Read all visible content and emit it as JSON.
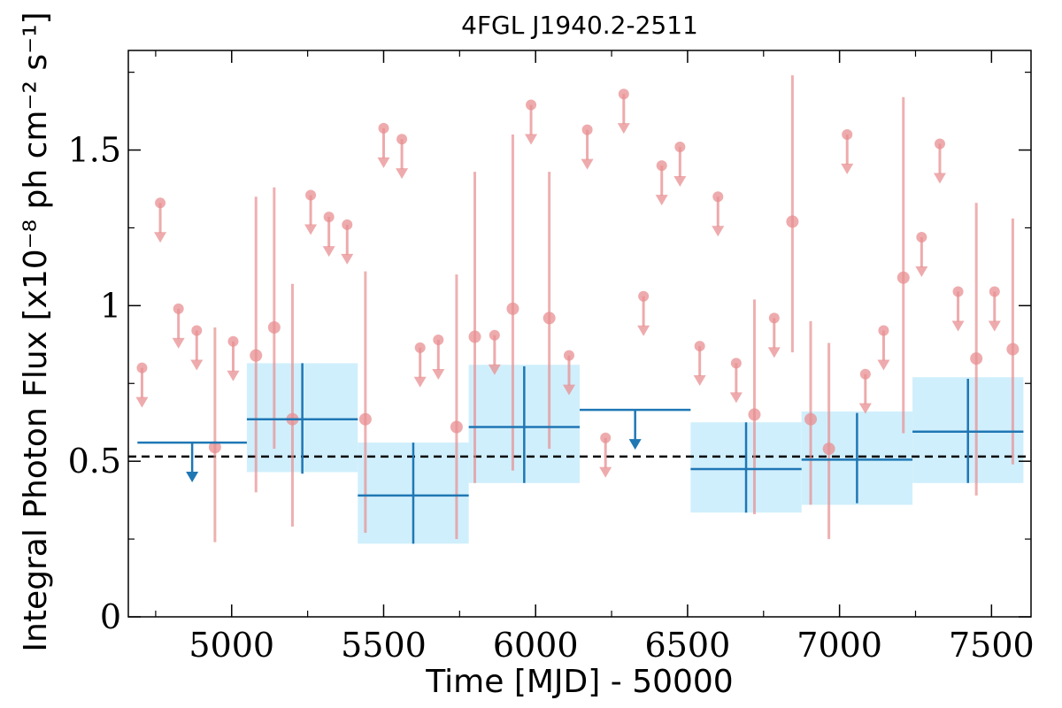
{
  "chart_data": {
    "type": "scatter",
    "title": "4FGL J1940.2-2511",
    "xlabel": "Time [MJD] - 50000",
    "ylabel": "Integral Photon Flux [x10⁻⁸ ph cm⁻² s⁻¹]",
    "xlim": [
      4660,
      7630
    ],
    "ylim": [
      0,
      1.82
    ],
    "x_ticks": [
      5000,
      5500,
      6000,
      6500,
      7000,
      7500
    ],
    "x_tick_labels": [
      "5000",
      "5500",
      "6000",
      "6500",
      "7000",
      "7500"
    ],
    "y_ticks": [
      0,
      0.5,
      1,
      1.5
    ],
    "y_tick_labels": [
      "0",
      "0.5",
      "1",
      "1.5"
    ],
    "reference_line": {
      "y": 0.515,
      "style": "dashed",
      "color": "#000000"
    },
    "colors": {
      "short_bins": "#e88f91",
      "long_bins": "#1f77b4",
      "band": "#cdeefc"
    },
    "series": [
      {
        "bin": "short",
        "points": [
          {
            "x": 4705,
            "y": 0.8,
            "ul": true
          },
          {
            "x": 4765,
            "y": 1.33,
            "ul": true
          },
          {
            "x": 4825,
            "y": 0.99,
            "ul": true
          },
          {
            "x": 4885,
            "y": 0.92,
            "ul": true
          },
          {
            "x": 4945,
            "y": 0.545,
            "lo": 0.24,
            "hi": 0.93
          },
          {
            "x": 5005,
            "y": 0.885,
            "ul": true
          },
          {
            "x": 5080,
            "y": 0.84,
            "lo": 0.4,
            "hi": 1.35
          },
          {
            "x": 5140,
            "y": 0.93,
            "lo": 0.54,
            "hi": 1.38
          },
          {
            "x": 5200,
            "y": 0.635,
            "lo": 0.29,
            "hi": 1.07
          },
          {
            "x": 5260,
            "y": 1.355,
            "ul": true
          },
          {
            "x": 5320,
            "y": 1.285,
            "ul": true
          },
          {
            "x": 5380,
            "y": 1.26,
            "ul": true
          },
          {
            "x": 5440,
            "y": 0.635,
            "lo": 0.27,
            "hi": 1.11
          },
          {
            "x": 5500,
            "y": 1.57,
            "ul": true
          },
          {
            "x": 5560,
            "y": 1.535,
            "ul": true
          },
          {
            "x": 5620,
            "y": 0.865,
            "ul": true
          },
          {
            "x": 5680,
            "y": 0.89,
            "ul": true
          },
          {
            "x": 5740,
            "y": 0.61,
            "lo": 0.25,
            "hi": 1.1
          },
          {
            "x": 5800,
            "y": 0.9,
            "lo": 0.43,
            "hi": 1.43
          },
          {
            "x": 5865,
            "y": 0.905,
            "ul": true
          },
          {
            "x": 5925,
            "y": 0.99,
            "lo": 0.47,
            "hi": 1.55
          },
          {
            "x": 5985,
            "y": 1.645,
            "ul": true
          },
          {
            "x": 6045,
            "y": 0.96,
            "lo": 0.54,
            "hi": 1.43
          },
          {
            "x": 6110,
            "y": 0.84,
            "ul": true
          },
          {
            "x": 6170,
            "y": 1.565,
            "ul": true
          },
          {
            "x": 6230,
            "y": 0.575,
            "ul": true
          },
          {
            "x": 6290,
            "y": 1.68,
            "ul": true
          },
          {
            "x": 6355,
            "y": 1.03,
            "ul": true
          },
          {
            "x": 6415,
            "y": 1.45,
            "ul": true
          },
          {
            "x": 6475,
            "y": 1.51,
            "ul": true
          },
          {
            "x": 6540,
            "y": 0.87,
            "ul": true
          },
          {
            "x": 6600,
            "y": 1.35,
            "ul": true
          },
          {
            "x": 6660,
            "y": 0.815,
            "ul": true
          },
          {
            "x": 6720,
            "y": 0.65,
            "lo": 0.33,
            "hi": 1.02
          },
          {
            "x": 6785,
            "y": 0.96,
            "ul": true
          },
          {
            "x": 6845,
            "y": 1.27,
            "lo": 0.85,
            "hi": 1.74
          },
          {
            "x": 6905,
            "y": 0.635,
            "lo": 0.36,
            "hi": 0.95
          },
          {
            "x": 6965,
            "y": 0.54,
            "lo": 0.25,
            "hi": 0.88
          },
          {
            "x": 7025,
            "y": 1.55,
            "ul": true
          },
          {
            "x": 7085,
            "y": 0.78,
            "ul": true
          },
          {
            "x": 7145,
            "y": 0.92,
            "ul": true
          },
          {
            "x": 7210,
            "y": 1.09,
            "lo": 0.59,
            "hi": 1.67
          },
          {
            "x": 7270,
            "y": 1.22,
            "ul": true
          },
          {
            "x": 7330,
            "y": 1.52,
            "ul": true
          },
          {
            "x": 7390,
            "y": 1.045,
            "ul": true
          },
          {
            "x": 7450,
            "y": 0.83,
            "lo": 0.39,
            "hi": 1.33
          },
          {
            "x": 7510,
            "y": 1.045,
            "ul": true
          },
          {
            "x": 7570,
            "y": 0.86,
            "lo": 0.49,
            "hi": 1.28
          }
        ]
      },
      {
        "bin": "long",
        "points": [
          {
            "x0": 4690,
            "x1": 5050,
            "y": 0.56,
            "ul": true
          },
          {
            "x0": 5050,
            "x1": 5415,
            "y": 0.635,
            "lo": 0.46,
            "hi": 0.815,
            "blo": 0.465,
            "bhi": 0.815
          },
          {
            "x0": 5415,
            "x1": 5780,
            "y": 0.39,
            "lo": 0.235,
            "hi": 0.56,
            "blo": 0.235,
            "bhi": 0.56
          },
          {
            "x0": 5780,
            "x1": 6145,
            "y": 0.61,
            "lo": 0.43,
            "hi": 0.805,
            "blo": 0.43,
            "bhi": 0.81
          },
          {
            "x0": 6145,
            "x1": 6510,
            "y": 0.665,
            "ul": true
          },
          {
            "x0": 6510,
            "x1": 6875,
            "y": 0.475,
            "lo": 0.335,
            "hi": 0.625,
            "blo": 0.335,
            "bhi": 0.625
          },
          {
            "x0": 6875,
            "x1": 7240,
            "y": 0.505,
            "lo": 0.365,
            "hi": 0.655,
            "blo": 0.36,
            "bhi": 0.66
          },
          {
            "x0": 7240,
            "x1": 7605,
            "y": 0.595,
            "lo": 0.43,
            "hi": 0.765,
            "blo": 0.43,
            "bhi": 0.77
          }
        ]
      }
    ]
  }
}
